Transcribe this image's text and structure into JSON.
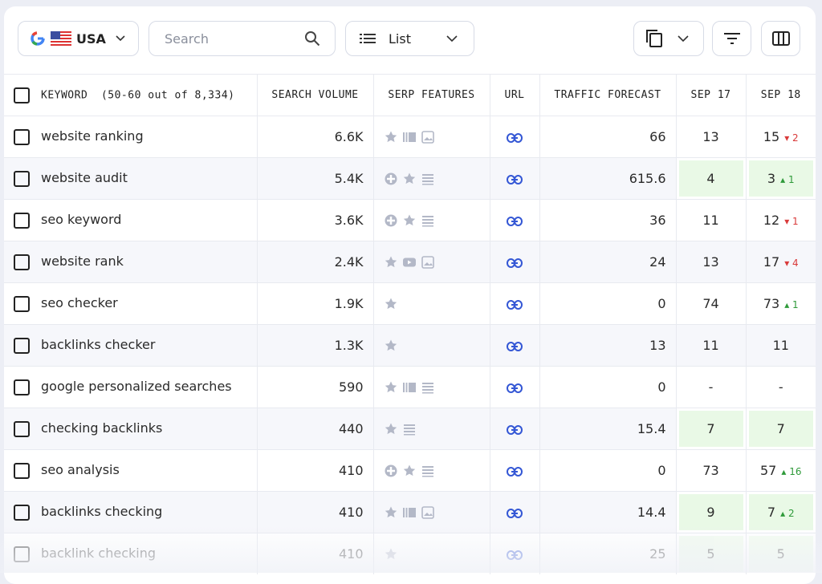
{
  "toolbar": {
    "country": "USA",
    "search_placeholder": "Search",
    "view": "List"
  },
  "table": {
    "headers": {
      "keyword": "KEYWORD",
      "count": "(50-60 out of 8,334)",
      "search_volume": "SEARCH VOLUME",
      "serp_features": "SERP FEATURES",
      "url": "URL",
      "traffic_forecast": "TRAFFIC FORECAST",
      "sep_17": "SEP 17",
      "sep_18": "SEP 18"
    },
    "rows": [
      {
        "keyword": "website ranking",
        "search_volume": "6.6K",
        "traffic_forecast": 66,
        "sep_17": 13,
        "sep_18": 15,
        "change": 2
      },
      {
        "keyword": "website audit",
        "search_volume": "5.4K",
        "traffic_forecast": 615.6,
        "sep_17": 4,
        "sep_18": 3,
        "change": 1
      },
      {
        "keyword": "seo keyword",
        "search_volume": "3.6K",
        "traffic_forecast": 36,
        "sep_17": 11,
        "sep_18": 12,
        "change": 1
      },
      {
        "keyword": "website rank",
        "search_volume": "2.4K",
        "traffic_forecast": 24,
        "sep_17": 13,
        "sep_18": 17,
        "change": 4
      },
      {
        "keyword": "seo checker",
        "search_volume": "1.9K",
        "traffic_forecast": 0,
        "sep_17": 74,
        "sep_18": 73,
        "change": 1
      },
      {
        "keyword": "backlinks checker",
        "search_volume": "1.3K",
        "traffic_forecast": 13,
        "sep_17": 11,
        "sep_18": 11
      },
      {
        "keyword": "google personalized searches",
        "search_volume": "590",
        "traffic_forecast": 0,
        "sep_17": "-",
        "sep_18": "-"
      },
      {
        "keyword": "checking backlinks",
        "search_volume": "440",
        "traffic_forecast": 15.4,
        "sep_17": 7,
        "sep_18": 7
      },
      {
        "keyword": "seo analysis",
        "search_volume": "410",
        "traffic_forecast": 0,
        "sep_17": 73,
        "sep_18": 57,
        "change": 16
      },
      {
        "keyword": "backlinks checking",
        "search_volume": "410",
        "traffic_forecast": 14.4,
        "sep_17": 9,
        "sep_18": 7,
        "change": 2
      },
      {
        "keyword": "backlink checking",
        "search_volume": "410",
        "traffic_forecast": 25,
        "sep_17": 5,
        "sep_18": 5
      }
    ]
  }
}
